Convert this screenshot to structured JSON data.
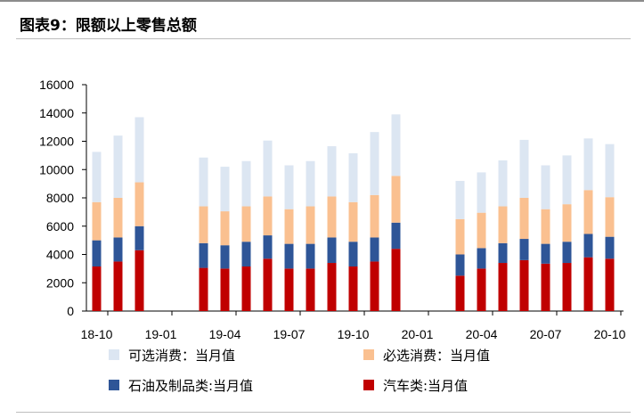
{
  "title": "图表9：限额以上零售总额",
  "chart_data": {
    "type": "bar",
    "stacked": true,
    "title": "图表9：限额以上零售总额",
    "xlabel": "",
    "ylabel": "",
    "ylim": [
      0,
      16000
    ],
    "yticks": [
      0,
      2000,
      4000,
      6000,
      8000,
      10000,
      12000,
      14000,
      16000
    ],
    "xtick_labels": [
      "18-10",
      "19-01",
      "19-04",
      "19-07",
      "19-10",
      "20-01",
      "20-04",
      "20-07",
      "20-10"
    ],
    "categories": [
      "18-10",
      "18-11",
      "18-12",
      "19-01",
      "19-02",
      "19-03",
      "19-04",
      "19-05",
      "19-06",
      "19-07",
      "19-08",
      "19-09",
      "19-10",
      "19-11",
      "19-12",
      "20-01",
      "20-02",
      "20-03",
      "20-04",
      "20-05",
      "20-06",
      "20-07",
      "20-08",
      "20-09",
      "20-10"
    ],
    "series": [
      {
        "name": "汽车类:当月值",
        "color": "#c00000",
        "values": [
          3150,
          3500,
          4300,
          null,
          null,
          3050,
          3000,
          3150,
          3700,
          3000,
          3000,
          3400,
          3150,
          3500,
          4400,
          null,
          null,
          2500,
          3000,
          3400,
          3600,
          3350,
          3400,
          3800,
          3700
        ]
      },
      {
        "name": "石油及制品类:当月值",
        "color": "#2e5597",
        "values": [
          1850,
          1700,
          1700,
          null,
          null,
          1750,
          1650,
          1750,
          1650,
          1750,
          1750,
          1800,
          1750,
          1700,
          1850,
          null,
          null,
          1500,
          1450,
          1400,
          1500,
          1400,
          1500,
          1650,
          1550
        ]
      },
      {
        "name": "必选消费：当月值",
        "color": "#fac090",
        "values": [
          2700,
          2800,
          3100,
          null,
          null,
          2600,
          2400,
          2500,
          2750,
          2450,
          2650,
          2900,
          2800,
          3000,
          3300,
          null,
          null,
          2500,
          2500,
          2600,
          2900,
          2450,
          2650,
          3100,
          2800
        ]
      },
      {
        "name": "可选消费：当月值",
        "color": "#dce6f2",
        "values": [
          3550,
          4400,
          4600,
          null,
          null,
          3450,
          3150,
          3200,
          3950,
          3100,
          3200,
          3550,
          3450,
          4450,
          4350,
          null,
          null,
          2700,
          2850,
          3250,
          4100,
          3100,
          3450,
          3650,
          3750
        ]
      }
    ],
    "legend": {
      "placement": "bottom",
      "order": [
        "可选消费：当月值",
        "必选消费：当月值",
        "石油及制品类:当月值",
        "汽车类:当月值"
      ]
    },
    "grid": false
  }
}
